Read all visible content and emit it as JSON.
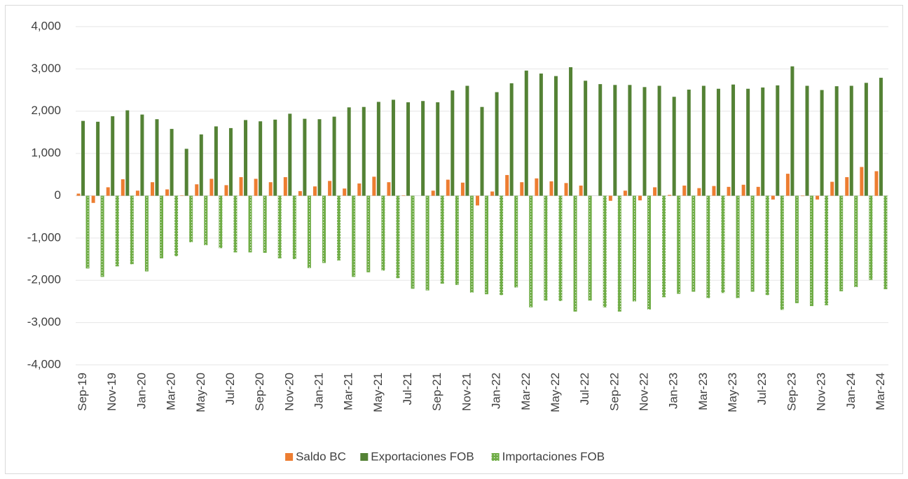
{
  "chart_data": {
    "type": "bar",
    "categories": [
      "Sep-19",
      null,
      "Nov-19",
      null,
      "Jan-20",
      null,
      "Mar-20",
      null,
      "May-20",
      null,
      "Jul-20",
      null,
      "Sep-20",
      null,
      "Nov-20",
      null,
      "Jan-21",
      null,
      "Mar-21",
      null,
      "May-21",
      null,
      "Jul-21",
      null,
      "Sep-21",
      null,
      "Nov-21",
      null,
      "Jan-22",
      null,
      "Mar-22",
      null,
      "May-22",
      null,
      "Jul-22",
      null,
      "Sep-22",
      null,
      "Nov-22",
      null,
      "Jan-23",
      null,
      "Mar-23",
      null,
      "May-23",
      null,
      "Jul-23",
      null,
      "Sep-23",
      null,
      "Nov-23",
      null,
      "Jan-24",
      null,
      "Mar-24"
    ],
    "series": [
      {
        "name": "Saldo BC",
        "color": "#ed7d31",
        "values": [
          50,
          -170,
          200,
          390,
          120,
          320,
          150,
          10,
          270,
          400,
          250,
          440,
          400,
          320,
          440,
          110,
          220,
          350,
          170,
          290,
          450,
          320,
          10,
          0,
          120,
          380,
          310,
          -230,
          100,
          490,
          320,
          410,
          340,
          300,
          240,
          0,
          -120,
          120,
          -110,
          200,
          20,
          240,
          180,
          230,
          210,
          260,
          210,
          -90,
          520,
          -10,
          -90,
          330,
          440,
          680,
          580
        ]
      },
      {
        "name": "Exportaciones FOB",
        "color": "#548235",
        "values": [
          1770,
          1750,
          1880,
          2020,
          1920,
          1810,
          1580,
          1110,
          1450,
          1640,
          1600,
          1790,
          1760,
          1800,
          1940,
          1820,
          1810,
          1870,
          2090,
          2100,
          2220,
          2270,
          2210,
          2240,
          2210,
          2490,
          2600,
          2100,
          2450,
          2660,
          2960,
          2890,
          2830,
          3040,
          2720,
          2640,
          2620,
          2620,
          2570,
          2600,
          2340,
          2510,
          2600,
          2530,
          2630,
          2530,
          2560,
          2610,
          3060,
          2600,
          2500,
          2590,
          2600,
          2670,
          2790
        ]
      },
      {
        "name": "Importaciones FOB",
        "color": "#70ad47",
        "values": [
          -1720,
          -1920,
          -1670,
          -1620,
          -1790,
          -1480,
          -1430,
          -1100,
          -1170,
          -1240,
          -1340,
          -1340,
          -1350,
          -1480,
          -1500,
          -1710,
          -1590,
          -1530,
          -1920,
          -1810,
          -1770,
          -1950,
          -2200,
          -2240,
          -2080,
          -2110,
          -2290,
          -2330,
          -2350,
          -2170,
          -2640,
          -2480,
          -2490,
          -2740,
          -2480,
          -2640,
          -2740,
          -2500,
          -2690,
          -2400,
          -2320,
          -2270,
          -2420,
          -2300,
          -2420,
          -2270,
          -2350,
          -2700,
          -2540,
          -2610,
          -2590,
          -2260,
          -2160,
          -1990,
          -2210
        ]
      }
    ],
    "ylim": [
      -4000,
      4000
    ],
    "yticks": [
      {
        "value": -4000,
        "label": "-4,000"
      },
      {
        "value": -3000,
        "label": "-3,000"
      },
      {
        "value": -2000,
        "label": "-2,000"
      },
      {
        "value": -1000,
        "label": "-1,000"
      },
      0,
      {
        "value": 1000,
        "label": "1,000"
      },
      {
        "value": 2000,
        "label": "2,000"
      },
      {
        "value": 3000,
        "label": "3,000"
      },
      {
        "value": 4000,
        "label": "4,000"
      }
    ],
    "grid": true,
    "legend": "bottom"
  }
}
